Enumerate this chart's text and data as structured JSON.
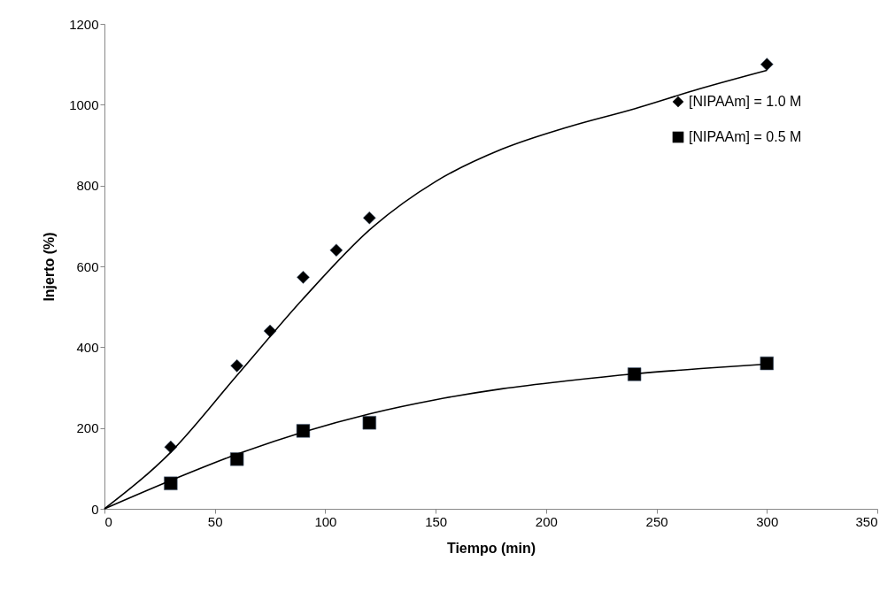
{
  "chart_data": {
    "type": "scatter",
    "xlabel": "Tiempo (min)",
    "ylabel": "Injerto (%)",
    "xlim": [
      0,
      350
    ],
    "xticks": [
      0,
      50,
      100,
      150,
      200,
      250,
      300,
      350
    ],
    "ylim": [
      0,
      1200
    ],
    "yticks": [
      0,
      200,
      400,
      600,
      800,
      1000,
      1200
    ],
    "grid": false,
    "legend": "right",
    "series": [
      {
        "name": "[NIPAAm] = 1.0 M",
        "marker": "diamond",
        "color": "#000000",
        "x": [
          30,
          60,
          75,
          90,
          105,
          120,
          300
        ],
        "values": [
          153,
          354,
          440,
          573,
          640,
          720,
          1100
        ]
      },
      {
        "name": "[NIPAAm] = 0.5 M",
        "marker": "square",
        "color": "#000000",
        "x": [
          30,
          60,
          90,
          120,
          240,
          300
        ],
        "values": [
          63,
          123,
          193,
          213,
          333,
          360
        ]
      },
      {
        "type": "line",
        "marker": "none",
        "color": "#000000",
        "x": [
          0,
          30,
          60,
          90,
          120,
          150,
          180,
          210,
          240,
          270,
          300
        ],
        "values": [
          0,
          140,
          330,
          520,
          690,
          810,
          890,
          945,
          990,
          1040,
          1085
        ]
      },
      {
        "type": "line",
        "marker": "none",
        "color": "#000000",
        "x": [
          0,
          30,
          60,
          90,
          120,
          150,
          180,
          210,
          240,
          270,
          300
        ],
        "values": [
          0,
          70,
          135,
          190,
          235,
          270,
          297,
          317,
          334,
          347,
          358
        ]
      }
    ]
  }
}
